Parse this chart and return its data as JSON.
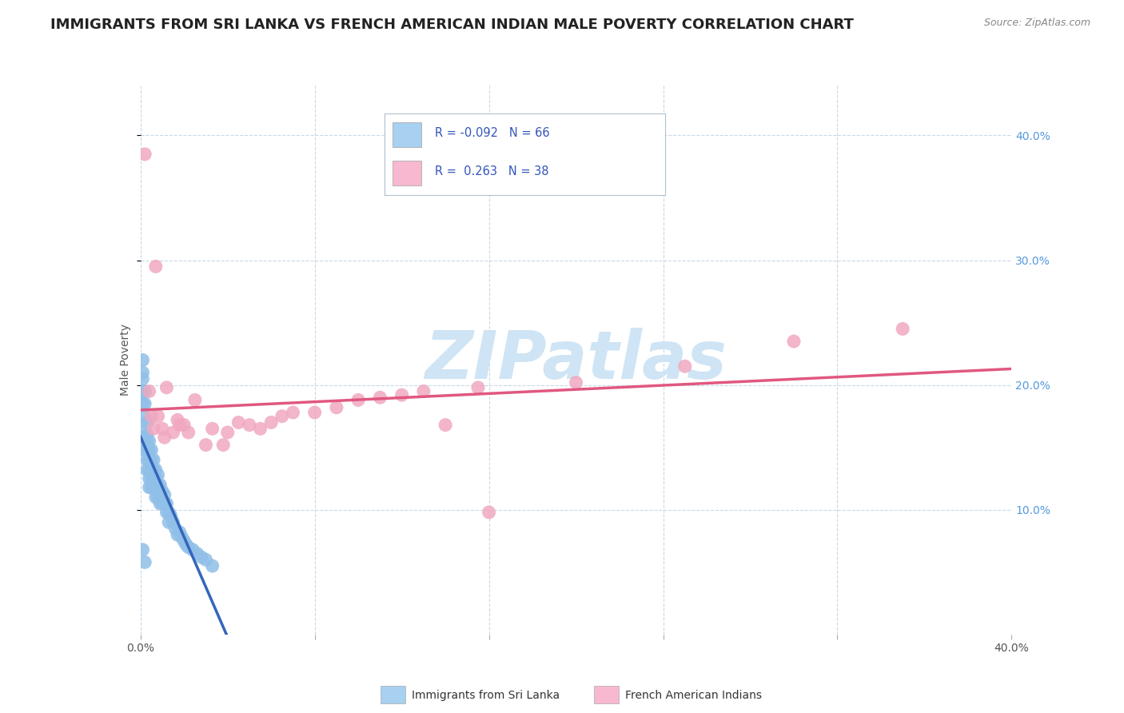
{
  "title": "IMMIGRANTS FROM SRI LANKA VS FRENCH AMERICAN INDIAN MALE POVERTY CORRELATION CHART",
  "source": "Source: ZipAtlas.com",
  "ylabel": "Male Poverty",
  "watermark": "ZIPatlas",
  "x_min": 0.0,
  "x_max": 0.4,
  "y_min": 0.0,
  "y_max": 0.44,
  "background_color": "#ffffff",
  "plot_background": "#ffffff",
  "grid_color": "#c8d8e8",
  "title_fontsize": 13,
  "axis_label_fontsize": 10,
  "tick_fontsize": 10,
  "watermark_color": "#cfe4f4",
  "watermark_fontsize": 60,
  "series": [
    {
      "name": "Immigrants from Sri Lanka",
      "R": -0.092,
      "N": 66,
      "color": "#90bfe8",
      "trend_color": "#3366bb",
      "trend_style_solid_end": 0.04,
      "x": [
        0.001,
        0.001,
        0.001,
        0.001,
        0.001,
        0.002,
        0.002,
        0.002,
        0.002,
        0.002,
        0.002,
        0.003,
        0.003,
        0.003,
        0.003,
        0.003,
        0.003,
        0.004,
        0.004,
        0.004,
        0.004,
        0.004,
        0.004,
        0.005,
        0.005,
        0.005,
        0.005,
        0.005,
        0.006,
        0.006,
        0.006,
        0.006,
        0.007,
        0.007,
        0.007,
        0.007,
        0.008,
        0.008,
        0.008,
        0.009,
        0.009,
        0.009,
        0.01,
        0.01,
        0.011,
        0.011,
        0.012,
        0.012,
        0.013,
        0.013,
        0.014,
        0.015,
        0.016,
        0.017,
        0.018,
        0.019,
        0.02,
        0.021,
        0.022,
        0.024,
        0.026,
        0.028,
        0.03,
        0.033,
        0.001,
        0.002
      ],
      "y": [
        0.22,
        0.21,
        0.205,
        0.195,
        0.185,
        0.195,
        0.185,
        0.175,
        0.165,
        0.158,
        0.148,
        0.17,
        0.16,
        0.155,
        0.148,
        0.14,
        0.132,
        0.155,
        0.148,
        0.14,
        0.132,
        0.125,
        0.118,
        0.148,
        0.14,
        0.132,
        0.125,
        0.118,
        0.14,
        0.132,
        0.125,
        0.118,
        0.132,
        0.125,
        0.118,
        0.11,
        0.128,
        0.12,
        0.11,
        0.12,
        0.112,
        0.105,
        0.115,
        0.105,
        0.112,
        0.105,
        0.105,
        0.098,
        0.098,
        0.09,
        0.095,
        0.09,
        0.085,
        0.08,
        0.082,
        0.078,
        0.075,
        0.072,
        0.07,
        0.068,
        0.065,
        0.062,
        0.06,
        0.055,
        0.068,
        0.058
      ]
    },
    {
      "name": "French American Indians",
      "R": 0.263,
      "N": 38,
      "color": "#f0a8c0",
      "trend_color": "#e05880",
      "trend_style": "solid",
      "x": [
        0.002,
        0.004,
        0.005,
        0.006,
        0.007,
        0.008,
        0.01,
        0.011,
        0.012,
        0.015,
        0.017,
        0.018,
        0.02,
        0.022,
        0.025,
        0.03,
        0.033,
        0.038,
        0.04,
        0.045,
        0.05,
        0.055,
        0.06,
        0.065,
        0.07,
        0.08,
        0.09,
        0.1,
        0.11,
        0.12,
        0.13,
        0.14,
        0.155,
        0.16,
        0.2,
        0.25,
        0.3,
        0.35
      ],
      "y": [
        0.385,
        0.195,
        0.175,
        0.165,
        0.295,
        0.175,
        0.165,
        0.158,
        0.198,
        0.162,
        0.172,
        0.168,
        0.168,
        0.162,
        0.188,
        0.152,
        0.165,
        0.152,
        0.162,
        0.17,
        0.168,
        0.165,
        0.17,
        0.175,
        0.178,
        0.178,
        0.182,
        0.188,
        0.19,
        0.192,
        0.195,
        0.168,
        0.198,
        0.098,
        0.202,
        0.215,
        0.235,
        0.245
      ]
    }
  ],
  "legend_entries": [
    {
      "R": "-0.092",
      "N": "66",
      "box_color": "#a8d0f0"
    },
    {
      "R": " 0.263",
      "N": "38",
      "box_color": "#f8b8d0"
    }
  ],
  "bottom_legend": [
    {
      "label": "Immigrants from Sri Lanka",
      "color": "#a8d0f0"
    },
    {
      "label": "French American Indians",
      "color": "#f8b8d0"
    }
  ]
}
